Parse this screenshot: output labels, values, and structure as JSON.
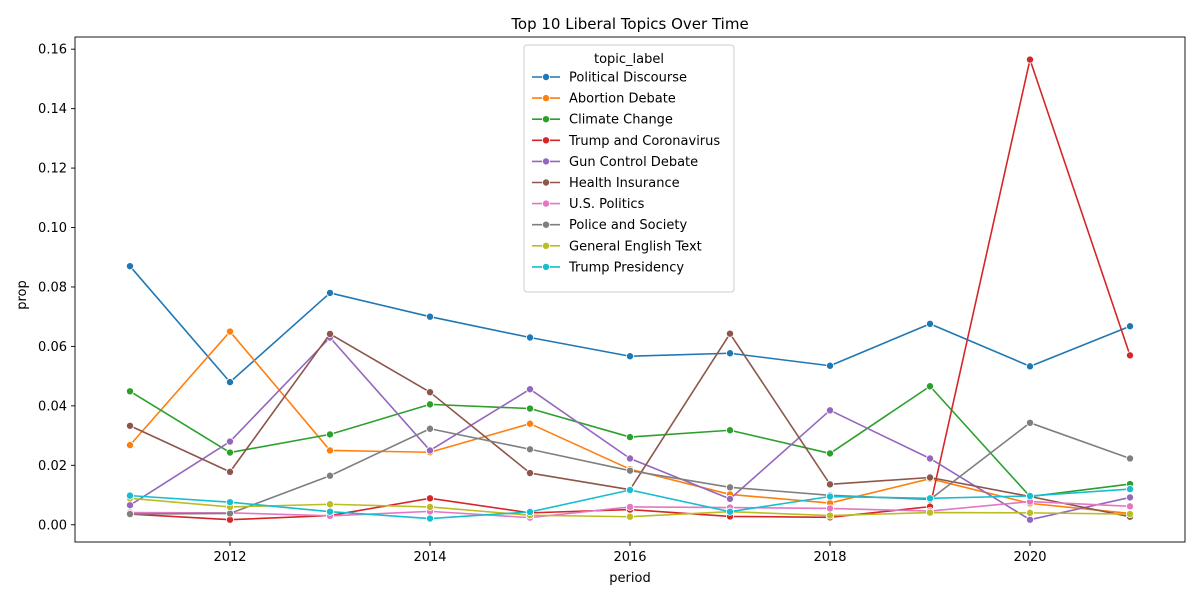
{
  "chart_data": {
    "type": "line",
    "title": "Top 10 Liberal Topics Over Time",
    "xlabel": "period",
    "ylabel": "prop",
    "x": [
      2011,
      2012,
      2013,
      2014,
      2015,
      2016,
      2017,
      2018,
      2019,
      2020,
      2021
    ],
    "xlim": [
      2010.45,
      2021.55
    ],
    "ylim": [
      -0.0058,
      0.1641
    ],
    "x_ticks": [
      2012,
      2014,
      2016,
      2018,
      2020
    ],
    "x_tick_labels": [
      "2012",
      "2014",
      "2016",
      "2018",
      "2020"
    ],
    "y_ticks": [
      0.0,
      0.02,
      0.04,
      0.06,
      0.08,
      0.1,
      0.12,
      0.14,
      0.16
    ],
    "y_tick_labels": [
      "0.00",
      "0.02",
      "0.04",
      "0.06",
      "0.08",
      "0.10",
      "0.12",
      "0.14",
      "0.16"
    ],
    "grid": false,
    "legend": {
      "title": "topic_label",
      "placement": "upper-center"
    },
    "series": [
      {
        "name": "Political Discourse",
        "color": "#1f77b4",
        "values": [
          0.087,
          0.048,
          0.078,
          0.07,
          0.063,
          0.0567,
          0.0577,
          0.0535,
          0.0676,
          0.0533,
          0.0668
        ]
      },
      {
        "name": "Abortion Debate",
        "color": "#ff7f0e",
        "values": [
          0.0268,
          0.065,
          0.025,
          0.0244,
          0.034,
          0.0187,
          0.0102,
          0.0073,
          0.0155,
          0.0072,
          0.0038
        ]
      },
      {
        "name": "Climate Change",
        "color": "#2ca02c",
        "values": [
          0.0449,
          0.0243,
          0.0304,
          0.0405,
          0.0391,
          0.0295,
          0.0318,
          0.024,
          0.0466,
          0.0095,
          0.0137
        ]
      },
      {
        "name": "Trump and Coronavirus",
        "color": "#d62728",
        "values": [
          0.0036,
          0.0017,
          0.0031,
          0.0089,
          0.004,
          0.0051,
          0.0028,
          0.0025,
          0.0061,
          0.1565,
          0.057
        ]
      },
      {
        "name": "Gun Control Debate",
        "color": "#9467bd",
        "values": [
          0.0066,
          0.028,
          0.063,
          0.025,
          0.0456,
          0.0223,
          0.0087,
          0.0385,
          0.0223,
          0.0017,
          0.0092
        ]
      },
      {
        "name": "Health Insurance",
        "color": "#8c564b",
        "values": [
          0.0333,
          0.0178,
          0.0642,
          0.0446,
          0.0174,
          0.0118,
          0.0643,
          0.0136,
          0.0159,
          0.0095,
          0.0027
        ]
      },
      {
        "name": "U.S. Politics",
        "color": "#e377c2",
        "values": [
          0.0041,
          0.004,
          0.003,
          0.0045,
          0.0024,
          0.006,
          0.0058,
          0.0055,
          0.0046,
          0.0078,
          0.0062
        ]
      },
      {
        "name": "Police and Society",
        "color": "#7f7f7f",
        "values": [
          0.0036,
          0.0038,
          0.0165,
          0.0323,
          0.0254,
          0.0182,
          0.0126,
          0.0099,
          0.0085,
          0.0343,
          0.0223
        ]
      },
      {
        "name": "General English Text",
        "color": "#bcbd22",
        "values": [
          0.0089,
          0.006,
          0.0069,
          0.006,
          0.0032,
          0.0027,
          0.0044,
          0.0031,
          0.0041,
          0.004,
          0.0036
        ]
      },
      {
        "name": "Trump Presidency",
        "color": "#17becf",
        "values": [
          0.0098,
          0.0076,
          0.0044,
          0.0021,
          0.0043,
          0.0117,
          0.0044,
          0.0095,
          0.0089,
          0.0097,
          0.012
        ]
      }
    ]
  }
}
